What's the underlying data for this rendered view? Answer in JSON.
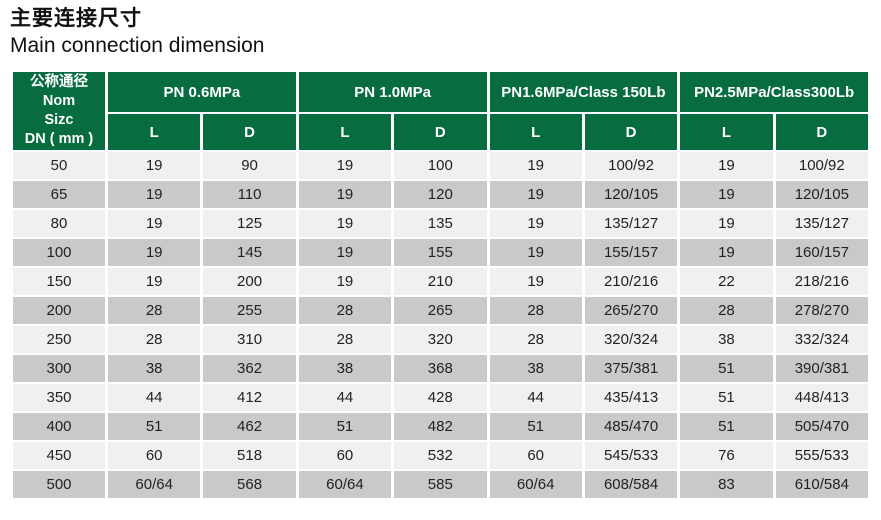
{
  "page": {
    "title_zh": "主要连接尺寸",
    "title_en": "Main connection dimension"
  },
  "colors": {
    "accent_green": "#076C3F",
    "row_light": "#F0F0F0",
    "row_dark": "#C9C9C9",
    "header_text": "#FFFFFF",
    "body_text": "#222222"
  },
  "table": {
    "row_header_lines": [
      "公称通径",
      "Nom",
      "Sizc",
      "DN ( mm )"
    ],
    "groups": [
      {
        "label": "PN 0.6MPa"
      },
      {
        "label": "PN 1.0MPa"
      },
      {
        "label": "PN1.6MPa/Class 150Lb"
      },
      {
        "label": "PN2.5MPa/Class300Lb"
      }
    ],
    "sub_headers": [
      "L",
      "D",
      "L",
      "D",
      "L",
      "D",
      "L",
      "D"
    ],
    "rows": [
      {
        "dn": "50",
        "values": [
          "19",
          "90",
          "19",
          "100",
          "19",
          "100/92",
          "19",
          "100/92"
        ]
      },
      {
        "dn": "65",
        "values": [
          "19",
          "110",
          "19",
          "120",
          "19",
          "120/105",
          "19",
          "120/105"
        ]
      },
      {
        "dn": "80",
        "values": [
          "19",
          "125",
          "19",
          "135",
          "19",
          "135/127",
          "19",
          "135/127"
        ]
      },
      {
        "dn": "100",
        "values": [
          "19",
          "145",
          "19",
          "155",
          "19",
          "155/157",
          "19",
          "160/157"
        ]
      },
      {
        "dn": "150",
        "values": [
          "19",
          "200",
          "19",
          "210",
          "19",
          "210/216",
          "22",
          "218/216"
        ]
      },
      {
        "dn": "200",
        "values": [
          "28",
          "255",
          "28",
          "265",
          "28",
          "265/270",
          "28",
          "278/270"
        ]
      },
      {
        "dn": "250",
        "values": [
          "28",
          "310",
          "28",
          "320",
          "28",
          "320/324",
          "38",
          "332/324"
        ]
      },
      {
        "dn": "300",
        "values": [
          "38",
          "362",
          "38",
          "368",
          "38",
          "375/381",
          "51",
          "390/381"
        ]
      },
      {
        "dn": "350",
        "values": [
          "44",
          "412",
          "44",
          "428",
          "44",
          "435/413",
          "51",
          "448/413"
        ]
      },
      {
        "dn": "400",
        "values": [
          "51",
          "462",
          "51",
          "482",
          "51",
          "485/470",
          "51",
          "505/470"
        ]
      },
      {
        "dn": "450",
        "values": [
          "60",
          "518",
          "60",
          "532",
          "60",
          "545/533",
          "76",
          "555/533"
        ]
      },
      {
        "dn": "500",
        "values": [
          "60/64",
          "568",
          "60/64",
          "585",
          "60/64",
          "608/584",
          "83",
          "610/584"
        ]
      }
    ]
  }
}
